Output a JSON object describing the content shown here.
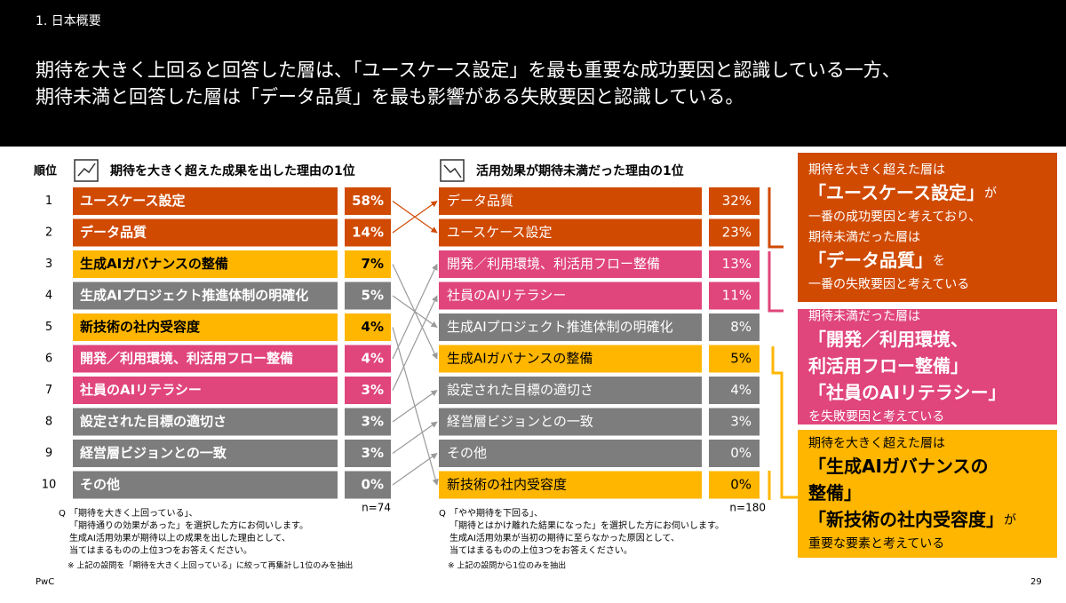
{
  "header": {
    "section": "1. 日本概要",
    "title": [
      "期待を大きく上回ると回答した層は、「ユースケース設定」を最も重要な成功要因と認識している一方、",
      "期待未満と回答した層は「データ品質」を最も影響がある失敗要因と認識している。"
    ]
  },
  "rank_label": "順位",
  "left": {
    "title": "期待を大きく超えた成果を出した理由の1位",
    "n": "n=74",
    "rows": [
      {
        "rank": 1,
        "label": "ユースケース設定",
        "value": "58%",
        "color": "#d04a02"
      },
      {
        "rank": 2,
        "label": "データ品質",
        "value": "14%",
        "color": "#d04a02"
      },
      {
        "rank": 3,
        "label": "生成AIガバナンスの整備",
        "value": "7%",
        "color": "#ffb600"
      },
      {
        "rank": 4,
        "label": "生成AIプロジェクト推進体制の明確化",
        "value": "5%",
        "color": "#7d7d7d"
      },
      {
        "rank": 5,
        "label": "新技術の社内受容度",
        "value": "4%",
        "color": "#ffb600"
      },
      {
        "rank": 6,
        "label": "開発／利用環境、利活用フロー整備",
        "value": "4%",
        "color": "#e0457b"
      },
      {
        "rank": 7,
        "label": "社員のAIリテラシー",
        "value": "3%",
        "color": "#e0457b"
      },
      {
        "rank": 8,
        "label": "設定された目標の適切さ",
        "value": "3%",
        "color": "#7d7d7d"
      },
      {
        "rank": 9,
        "label": "経営層ビジョンとの一致",
        "value": "3%",
        "color": "#7d7d7d"
      },
      {
        "rank": 10,
        "label": "その他",
        "value": "0%",
        "color": "#7d7d7d"
      }
    ],
    "q_mark": "Q",
    "notes": [
      "「期待を大きく上回っている」、",
      "「期待通りの効果があった」を選択した方にお伺いします。",
      "生成AI活用効果が期待以上の成果を出した理由として、",
      "当てはまるものの上位3つをお答えください。"
    ],
    "footnote": "※ 上記の設問を「期待を大きく上回っている」に絞って再集計し1位のみを抽出"
  },
  "right": {
    "title": "活用効果が期待未満だった理由の1位",
    "n": "n=180",
    "rows": [
      {
        "label": "データ品質",
        "value": "32%",
        "color": "#d04a02"
      },
      {
        "label": "ユースケース設定",
        "value": "23%",
        "color": "#d04a02"
      },
      {
        "label": "開発／利用環境、利活用フロー整備",
        "value": "13%",
        "color": "#e0457b"
      },
      {
        "label": "社員のAIリテラシー",
        "value": "11%",
        "color": "#e0457b"
      },
      {
        "label": "生成AIプロジェクト推進体制の明確化",
        "value": "8%",
        "color": "#7d7d7d"
      },
      {
        "label": "生成AIガバナンスの整備",
        "value": "5%",
        "color": "#ffb600"
      },
      {
        "label": "設定された目標の適切さ",
        "value": "4%",
        "color": "#7d7d7d"
      },
      {
        "label": "経営層ビジョンとの一致",
        "value": "3%",
        "color": "#7d7d7d"
      },
      {
        "label": "その他",
        "value": "0%",
        "color": "#7d7d7d"
      },
      {
        "label": "新技術の社内受容度",
        "value": "0%",
        "color": "#ffb600"
      }
    ],
    "q_mark": "Q",
    "notes": [
      "「やや期待を下回る」、",
      "「期待とはかけ離れた結果になった」を選択した方にお伺いします。",
      "生成AI活用効果が当初の期待に至らなかった原因として、",
      "当てはまるものの上位3つをお答えください。"
    ],
    "footnote": "※ 上記の設問から1位のみを抽出"
  },
  "callouts": [
    {
      "color": "#d04a02",
      "text_color": "#ffffff",
      "lines": [
        [
          {
            "text": "期待を大きく超えた層は"
          }
        ],
        [
          {
            "text": "「ユースケース設定」",
            "big": true
          },
          {
            "text": "が"
          }
        ],
        [
          {
            "text": "一番の成功要因と考えており、"
          }
        ],
        [
          {
            "text": "期待未満だった層は"
          }
        ],
        [
          {
            "text": "「データ品質」",
            "big": true
          },
          {
            "text": "を"
          }
        ],
        [
          {
            "text": "一番の失敗要因と考えている"
          }
        ]
      ]
    },
    {
      "color": "#e0457b",
      "text_color": "#ffffff",
      "lines": [
        [
          {
            "text": "期待未満だった層は"
          }
        ],
        [
          {
            "text": "「開発／利用環境、",
            "big": true
          }
        ],
        [
          {
            "text": "利活用フロー整備」",
            "big": true
          }
        ],
        [
          {
            "text": "「社員のAIリテラシー」",
            "big": true
          }
        ],
        [
          {
            "text": "を失敗要因と考えている"
          }
        ]
      ]
    },
    {
      "color": "#ffb600",
      "text_color": "#000000",
      "lines": [
        [
          {
            "text": "期待を大きく超えた層は"
          }
        ],
        [
          {
            "text": "「生成AIガバナンスの",
            "big": true
          }
        ],
        [
          {
            "text": "整備」",
            "big": true
          }
        ],
        [
          {
            "text": "「新技術の社内受容度」",
            "big": true
          },
          {
            "text": "が"
          }
        ],
        [
          {
            "text": "重要な要素と考えている"
          }
        ]
      ]
    }
  ],
  "footer": {
    "source": "PwC",
    "page": "29"
  }
}
